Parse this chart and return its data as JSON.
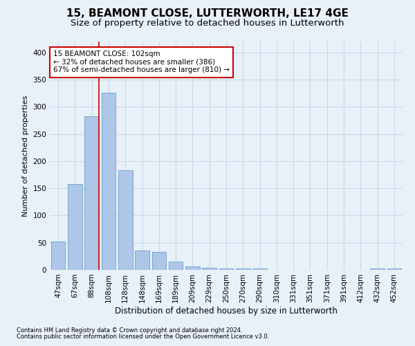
{
  "title": "15, BEAMONT CLOSE, LUTTERWORTH, LE17 4GE",
  "subtitle": "Size of property relative to detached houses in Lutterworth",
  "xlabel": "Distribution of detached houses by size in Lutterworth",
  "ylabel": "Number of detached properties",
  "categories": [
    "47sqm",
    "67sqm",
    "88sqm",
    "108sqm",
    "128sqm",
    "148sqm",
    "169sqm",
    "189sqm",
    "209sqm",
    "229sqm",
    "250sqm",
    "270sqm",
    "290sqm",
    "310sqm",
    "331sqm",
    "351sqm",
    "371sqm",
    "391sqm",
    "412sqm",
    "432sqm",
    "452sqm"
  ],
  "values": [
    52,
    158,
    283,
    326,
    183,
    36,
    33,
    15,
    7,
    4,
    2,
    2,
    2,
    0,
    0,
    0,
    0,
    0,
    0,
    3,
    2
  ],
  "bar_color": "#aec6e8",
  "bar_edge_color": "#6a9fc8",
  "grid_color": "#c8d8ea",
  "background_color": "#e8f0f8",
  "property_line_color": "#cc0000",
  "annotation_text": "15 BEAMONT CLOSE: 102sqm\n← 32% of detached houses are smaller (386)\n67% of semi-detached houses are larger (810) →",
  "annotation_box_color": "#ffffff",
  "annotation_box_edge": "#cc0000",
  "ylim": [
    0,
    420
  ],
  "yticks": [
    0,
    50,
    100,
    150,
    200,
    250,
    300,
    350,
    400
  ],
  "footnote1": "Contains HM Land Registry data © Crown copyright and database right 2024.",
  "footnote2": "Contains public sector information licensed under the Open Government Licence v3.0.",
  "title_fontsize": 11,
  "subtitle_fontsize": 9.5,
  "xlabel_fontsize": 8.5,
  "ylabel_fontsize": 8,
  "tick_fontsize": 7.5,
  "annot_fontsize": 7.5,
  "footnote_fontsize": 6
}
